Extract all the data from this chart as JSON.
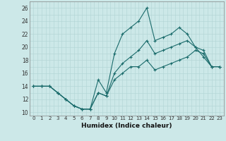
{
  "xlabel": "Humidex (Indice chaleur)",
  "xlim": [
    -0.5,
    23.5
  ],
  "ylim": [
    9.5,
    27
  ],
  "xtick_labels": [
    "0",
    "1",
    "2",
    "3",
    "4",
    "5",
    "6",
    "7",
    "8",
    "9",
    "10",
    "11",
    "12",
    "13",
    "14",
    "15",
    "16",
    "17",
    "18",
    "19",
    "20",
    "21",
    "22",
    "23"
  ],
  "ytick_labels": [
    "10",
    "12",
    "14",
    "16",
    "18",
    "20",
    "22",
    "24",
    "26"
  ],
  "ytick_vals": [
    10,
    12,
    14,
    16,
    18,
    20,
    22,
    24,
    26
  ],
  "bg_color": "#cce8e8",
  "line_color": "#1a6b6b",
  "line1_x": [
    0,
    1,
    2,
    3,
    4,
    5,
    6,
    7,
    8,
    9,
    10,
    11,
    12,
    13,
    14,
    15,
    16,
    17,
    18,
    19,
    20,
    21,
    22,
    23
  ],
  "line1_y": [
    14,
    14,
    14,
    13,
    12,
    11,
    10.5,
    10.5,
    15,
    13,
    19,
    22,
    23,
    24,
    26,
    21,
    21.5,
    22,
    23,
    22,
    20,
    18.5,
    17,
    17
  ],
  "line2_x": [
    0,
    1,
    2,
    3,
    4,
    5,
    6,
    7,
    8,
    9,
    10,
    11,
    12,
    13,
    14,
    15,
    16,
    17,
    18,
    19,
    20,
    21,
    22,
    23
  ],
  "line2_y": [
    14,
    14,
    14,
    13,
    12,
    11,
    10.5,
    10.5,
    13,
    12.5,
    16,
    17.5,
    18.5,
    19.5,
    21,
    19,
    19.5,
    20,
    20.5,
    21,
    20,
    19.5,
    17,
    17
  ],
  "line3_x": [
    0,
    1,
    2,
    3,
    4,
    5,
    6,
    7,
    8,
    9,
    10,
    11,
    12,
    13,
    14,
    15,
    16,
    17,
    18,
    19,
    20,
    21,
    22,
    23
  ],
  "line3_y": [
    14,
    14,
    14,
    13,
    12,
    11,
    10.5,
    10.5,
    13,
    12.5,
    15,
    16,
    17,
    17,
    18,
    16.5,
    17,
    17.5,
    18,
    18.5,
    19.5,
    19,
    17,
    17
  ]
}
